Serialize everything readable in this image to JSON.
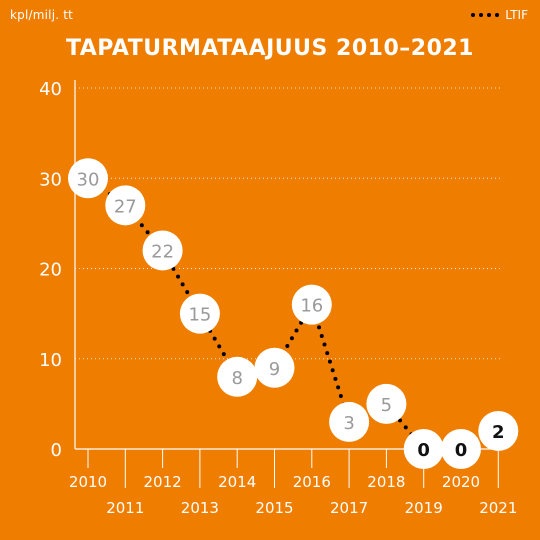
{
  "header": {
    "unit": "kpl/milj. tt",
    "legend_label": "LTIF"
  },
  "colors": {
    "background": "#EE7D00",
    "line": "#000000",
    "bubble": "#ffffff",
    "value_text_grey": "#9A9A9A",
    "value_text_dark": "#111111",
    "axis": "#ffffff"
  },
  "chart_data": {
    "type": "line",
    "title": "TAPATURMATAAJUUS 2010–2021",
    "xlabel": "",
    "ylabel": "",
    "ylim": [
      0,
      40
    ],
    "yticks": [
      0,
      10,
      20,
      30,
      40
    ],
    "grid": true,
    "legend_position": "top-right",
    "x": [
      "2010",
      "2011",
      "2012",
      "2013",
      "2014",
      "2015",
      "2016",
      "2017",
      "2018",
      "2019",
      "2020",
      "2021"
    ],
    "series": [
      {
        "name": "LTIF",
        "line_style": "dotted",
        "values": [
          30,
          27,
          22,
          15,
          8,
          9,
          16,
          3,
          5,
          0,
          0,
          2
        ]
      }
    ]
  }
}
